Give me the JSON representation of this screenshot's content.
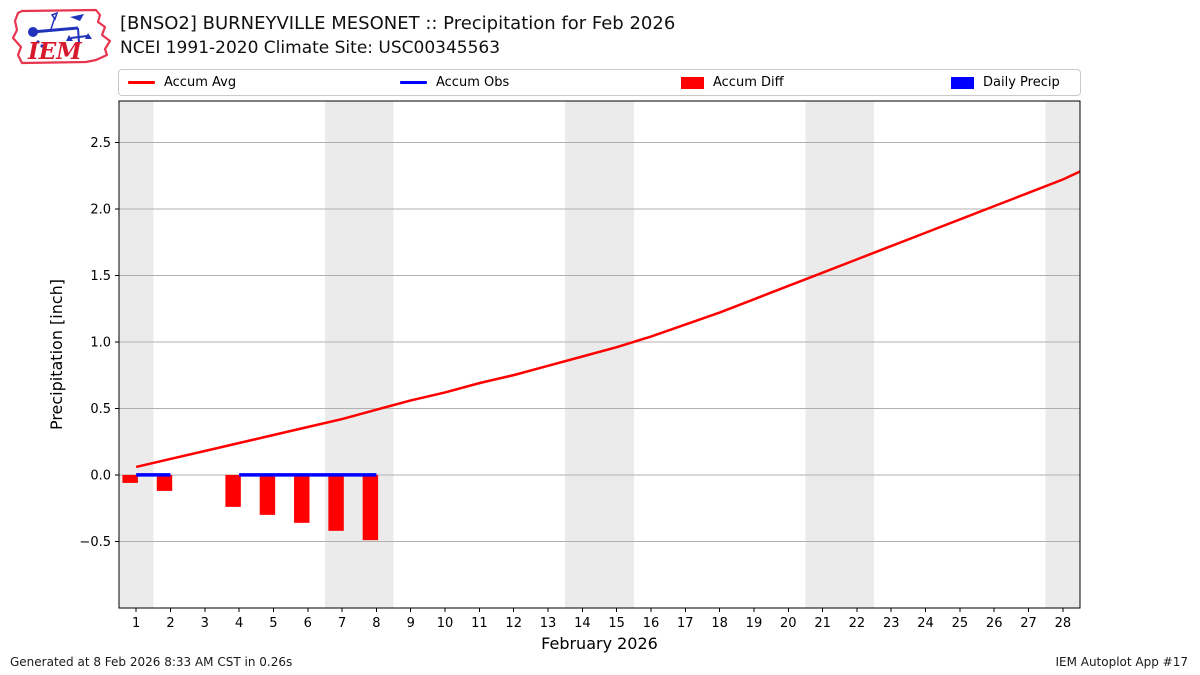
{
  "header": {
    "title": "[BNSO2] BURNEYVILLE MESONET :: Precipitation for Feb 2026",
    "subtitle": "NCEI 1991-2020 Climate Site: USC00345563"
  },
  "logo": {
    "text": "IEM",
    "outline_color": "#e8354f",
    "instrument_color": "#2233bb",
    "text_color": "#d8182d"
  },
  "legend": {
    "items": [
      {
        "label": "Accum Avg",
        "type": "line",
        "color": "#ff0000"
      },
      {
        "label": "Accum Obs",
        "type": "line",
        "color": "#0000ff"
      },
      {
        "label": "Accum Diff",
        "type": "patch",
        "color": "#ff0000"
      },
      {
        "label": "Daily Precip",
        "type": "patch",
        "color": "#0000ff"
      }
    ]
  },
  "footer": {
    "left": "Generated at 8 Feb 2026 8:33 AM CST in 0.26s",
    "right": "IEM Autoplot App #17"
  },
  "chart_data": {
    "type": "line+bar",
    "title": "[BNSO2] BURNEYVILLE MESONET :: Precipitation for Feb 2026",
    "subtitle": "NCEI 1991-2020 Climate Site: USC00345563",
    "xlabel": "February 2026",
    "ylabel": "Precipitation [inch]",
    "xlim": [
      0.5,
      28.5
    ],
    "ylim": [
      -1.0,
      2.81
    ],
    "xticks": [
      1,
      2,
      3,
      4,
      5,
      6,
      7,
      8,
      9,
      10,
      11,
      12,
      13,
      14,
      15,
      16,
      17,
      18,
      19,
      20,
      21,
      22,
      23,
      24,
      25,
      26,
      27,
      28
    ],
    "yticks": [
      -0.5,
      0.0,
      0.5,
      1.0,
      1.5,
      2.0,
      2.5
    ],
    "grid": true,
    "weekend_bands": [
      [
        0.5,
        1.5
      ],
      [
        6.5,
        8.5
      ],
      [
        13.5,
        15.5
      ],
      [
        20.5,
        22.5
      ],
      [
        27.5,
        28.5
      ]
    ],
    "band_color": "#ebebeb",
    "grid_color": "#b0b0b0",
    "series": [
      {
        "name": "Accum Avg",
        "type": "line",
        "color": "#ff0000",
        "x": [
          1,
          2,
          3,
          4,
          5,
          6,
          7,
          8,
          9,
          10,
          11,
          12,
          13,
          14,
          15,
          16,
          17,
          18,
          19,
          20,
          21,
          22,
          23,
          24,
          25,
          26,
          27,
          28,
          28.5
        ],
        "values": [
          0.06,
          0.12,
          0.18,
          0.24,
          0.3,
          0.36,
          0.42,
          0.49,
          0.56,
          0.62,
          0.69,
          0.75,
          0.82,
          0.89,
          0.96,
          1.04,
          1.13,
          1.22,
          1.32,
          1.42,
          1.52,
          1.62,
          1.72,
          1.82,
          1.92,
          2.02,
          2.12,
          2.22,
          2.28
        ]
      },
      {
        "name": "Accum Obs",
        "type": "line",
        "color": "#0000ff",
        "segments": [
          {
            "x": [
              1,
              2
            ],
            "values": [
              0.0,
              0.0
            ]
          },
          {
            "x": [
              4,
              8
            ],
            "values": [
              0.0,
              0.0
            ]
          }
        ]
      },
      {
        "name": "Accum Diff",
        "type": "bar",
        "color": "#ff0000",
        "x": [
          1,
          2,
          4,
          5,
          6,
          7,
          8
        ],
        "values": [
          -0.06,
          -0.12,
          -0.24,
          -0.3,
          -0.36,
          -0.42,
          -0.49
        ]
      },
      {
        "name": "Daily Precip",
        "type": "bar",
        "color": "#0000ff",
        "x": [],
        "values": []
      }
    ]
  }
}
